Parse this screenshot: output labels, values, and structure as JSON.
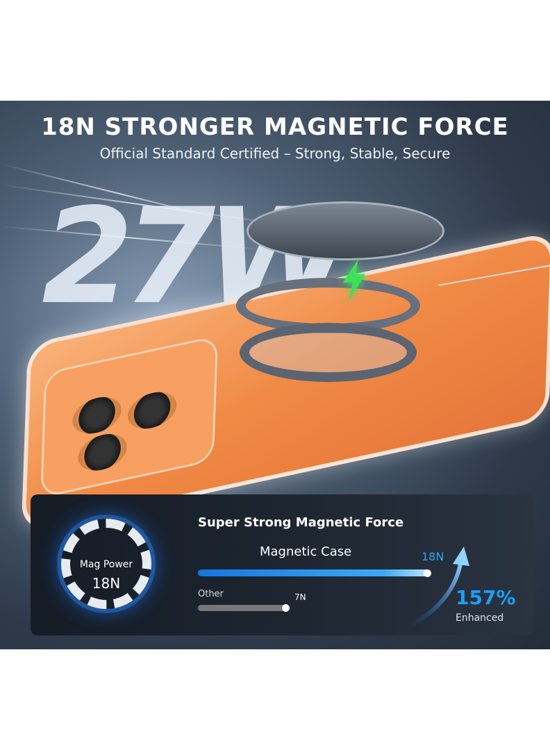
{
  "header": {
    "title": "18N STRONGER MAGNETIC FORCE",
    "subtitle": "Official Standard Certified – Strong, Stable, Secure"
  },
  "hero": {
    "wattage": "27W",
    "bolt_icon": "lightning-bolt-icon",
    "accent_green": "#3ee05a"
  },
  "panel": {
    "badge_label": "Mag Power",
    "badge_value": "18N",
    "title": "Super Strong Magnetic Force",
    "bars": [
      {
        "label": "Magnetic Case",
        "value_label": "18N",
        "value": 18,
        "color": "#2fa5f5"
      },
      {
        "label": "Other",
        "value_label": "7N",
        "value": 7,
        "color": "#777777"
      }
    ],
    "increase": "157%",
    "increase_label": "Enhanced",
    "accent": "#1aa0f5"
  }
}
